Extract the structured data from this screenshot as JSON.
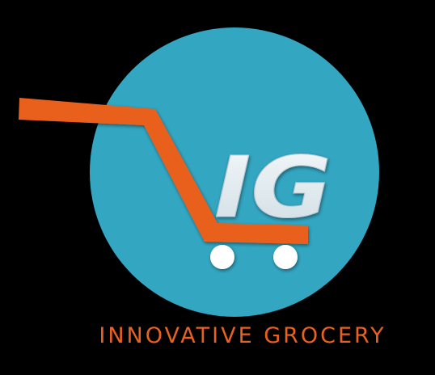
{
  "logo": {
    "monogram": "IG",
    "name": "INNOVATIVE GROCERY",
    "icon": "shopping-cart-icon",
    "colors": {
      "background": "#000000",
      "circle": "#33a6c2",
      "cart": "#e8611f",
      "monogram": "#e8eef1",
      "wheels": "#ffffff"
    }
  }
}
